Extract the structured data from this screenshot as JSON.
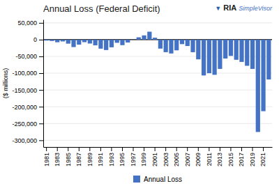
{
  "chart_data": {
    "type": "bar",
    "title": "Annual Loss (Federal Deficit)",
    "y_label": "($ millions)",
    "categories": [
      1981,
      null,
      1983,
      null,
      1985,
      null,
      1987,
      null,
      1989,
      null,
      1991,
      null,
      1993,
      null,
      1995,
      null,
      1997,
      null,
      1999,
      null,
      2001,
      null,
      2003,
      null,
      2005,
      null,
      2007,
      null,
      2009,
      null,
      2011,
      null,
      2013,
      null,
      2015,
      null,
      2017,
      null,
      2019,
      null,
      2021,
      null
    ],
    "series": [
      {
        "name": "Annual Loss",
        "color": "#4472C4",
        "values": [
          -2788,
          -4064,
          -7781,
          -5307,
          -11982,
          -22152,
          -14956,
          -7560,
          -11614,
          -16957,
          -26869,
          -31017,
          -22887,
          -9401,
          -16418,
          -8527,
          -327,
          6929,
          12649,
          23629,
          5716,
          -26745,
          -37417,
          -41276,
          -31908,
          -13440,
          -19052,
          -37453,
          -58753,
          -106801,
          -99997,
          -104809,
          -87179,
          -56270,
          -48413,
          -60069,
          -66427,
          -77958,
          -87253,
          -275269,
          -213279,
          -118749
        ]
      }
    ],
    "ylim": [
      -320000,
      60000
    ],
    "yticks": [
      {
        "value": 50000,
        "label": "50,000"
      },
      0,
      {
        "value": -50000,
        "label": "-50,000"
      },
      {
        "value": -100000,
        "label": "-100,000"
      },
      {
        "value": -150000,
        "label": "-150,000"
      },
      {
        "value": -200000,
        "label": "-200,000"
      },
      {
        "value": -250000,
        "label": "-250,000"
      },
      {
        "value": -300000,
        "label": "-300,000"
      }
    ],
    "grid": true,
    "legend": "bottom",
    "annotations": [
      {
        "text": "▼",
        "color": "#2B5EA7"
      },
      {
        "text": "RIA",
        "color": "#1a1a1a"
      },
      {
        "text": "SimpleVisor",
        "color": "#4472C4"
      }
    ]
  }
}
